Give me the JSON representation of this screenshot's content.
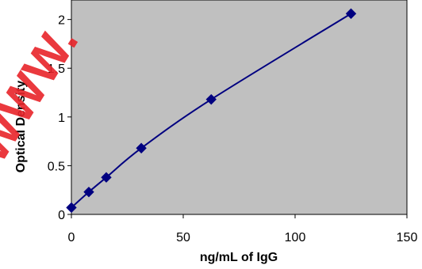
{
  "chart_data": {
    "type": "scatter",
    "xlabel": "ng/mL of IgG",
    "ylabel": "Optical Density",
    "xlim": [
      0,
      150
    ],
    "ylim": [
      0,
      2.2
    ],
    "x_ticks": [
      0,
      50,
      100,
      150
    ],
    "x_tick_labels": [
      "0",
      "50",
      "100",
      "150"
    ],
    "y_ticks": [
      0,
      0.5,
      1,
      1.5,
      2
    ],
    "y_tick_labels": [
      "0",
      "0.5",
      "1",
      "1.5",
      "2"
    ],
    "grid": false,
    "legend": "none",
    "plot_background": "#c0c0c0",
    "series": [
      {
        "color": "#000080",
        "marker": "diamond",
        "line": "smooth",
        "x": [
          0,
          7.8,
          15.6,
          31.25,
          62.5,
          125
        ],
        "y": [
          0.07,
          0.23,
          0.38,
          0.68,
          1.18,
          2.06
        ]
      }
    ]
  },
  "watermark": {
    "text": "WWW.",
    "color": "#e8242a"
  }
}
